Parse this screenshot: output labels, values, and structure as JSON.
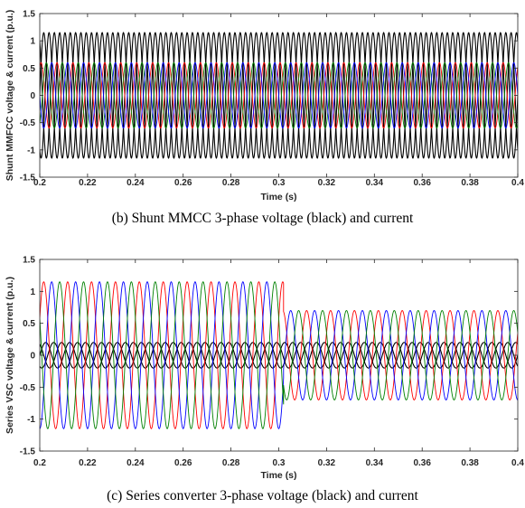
{
  "chart_data": [
    {
      "type": "line",
      "caption": "(b) Shunt MMCC 3-phase voltage (black) and current",
      "xlabel": "Time (s)",
      "ylabel": "Shunt MMFCC voltage & current (p.u.)",
      "xlim": [
        0.2,
        0.4
      ],
      "ylim": [
        -1.5,
        1.5
      ],
      "xticks": [
        "0.2",
        "0.22",
        "0.24",
        "0.26",
        "0.28",
        "0.3",
        "0.32",
        "0.34",
        "0.36",
        "0.38",
        "0.4"
      ],
      "yticks": [
        "1.5",
        "1",
        "0.5",
        "0",
        "-0.5",
        "-1",
        "-1.5"
      ],
      "grid": false,
      "frequency_hz": 150,
      "series": [
        {
          "color": "#000000",
          "kind": "voltage",
          "phase_deg": 0,
          "segments": [
            {
              "t0": 0.2,
              "t1": 0.4,
              "amplitude": 1.15
            }
          ]
        },
        {
          "color": "#000000",
          "kind": "voltage",
          "phase_deg": -120,
          "segments": [
            {
              "t0": 0.2,
              "t1": 0.4,
              "amplitude": 1.15
            }
          ]
        },
        {
          "color": "#000000",
          "kind": "voltage",
          "phase_deg": 120,
          "segments": [
            {
              "t0": 0.2,
              "t1": 0.4,
              "amplitude": 1.15
            }
          ]
        },
        {
          "color": "#ff0000",
          "kind": "current",
          "phase_deg": 60,
          "segments": [
            {
              "t0": 0.2,
              "t1": 0.4,
              "amplitude": 0.6
            }
          ]
        },
        {
          "color": "#008000",
          "kind": "current",
          "phase_deg": -60,
          "segments": [
            {
              "t0": 0.2,
              "t1": 0.4,
              "amplitude": 0.6
            }
          ]
        },
        {
          "color": "#0000ff",
          "kind": "current",
          "phase_deg": 180,
          "segments": [
            {
              "t0": 0.2,
              "t1": 0.4,
              "amplitude": 0.6
            }
          ]
        }
      ]
    },
    {
      "type": "line",
      "caption": "(c) Series converter 3-phase voltage (black) and current",
      "xlabel": "Time (s)",
      "ylabel": "Series VSC voltage & current (p.u.)",
      "xlim": [
        0.2,
        0.4
      ],
      "ylim": [
        -1.5,
        1.5
      ],
      "xticks": [
        "0.2",
        "0.22",
        "0.24",
        "0.26",
        "0.28",
        "0.3",
        "0.32",
        "0.34",
        "0.36",
        "0.38",
        "0.4"
      ],
      "yticks": [
        "1.5",
        "1",
        "0.5",
        "0",
        "-0.5",
        "-1",
        "-1.5"
      ],
      "grid": false,
      "frequency_hz": 100,
      "series": [
        {
          "color": "#000000",
          "kind": "voltage",
          "phase_deg": 0,
          "segments": [
            {
              "t0": 0.2,
              "t1": 0.4,
              "amplitude": 0.2
            }
          ]
        },
        {
          "color": "#000000",
          "kind": "voltage",
          "phase_deg": -120,
          "segments": [
            {
              "t0": 0.2,
              "t1": 0.4,
              "amplitude": 0.2
            }
          ]
        },
        {
          "color": "#000000",
          "kind": "voltage",
          "phase_deg": 120,
          "segments": [
            {
              "t0": 0.2,
              "t1": 0.4,
              "amplitude": 0.2
            }
          ]
        },
        {
          "color": "#ff0000",
          "kind": "current",
          "phase_deg": 30,
          "segments": [
            {
              "t0": 0.2,
              "t1": 0.302,
              "amplitude": 1.15
            },
            {
              "t0": 0.302,
              "t1": 0.4,
              "amplitude": 0.7
            }
          ]
        },
        {
          "color": "#0000ff",
          "kind": "current",
          "phase_deg": -90,
          "segments": [
            {
              "t0": 0.2,
              "t1": 0.302,
              "amplitude": 1.15
            },
            {
              "t0": 0.302,
              "t1": 0.4,
              "amplitude": 0.7
            }
          ]
        },
        {
          "color": "#008000",
          "kind": "current",
          "phase_deg": 150,
          "segments": [
            {
              "t0": 0.2,
              "t1": 0.302,
              "amplitude": 1.15
            },
            {
              "t0": 0.302,
              "t1": 0.4,
              "amplitude": 0.7
            }
          ]
        }
      ]
    }
  ]
}
